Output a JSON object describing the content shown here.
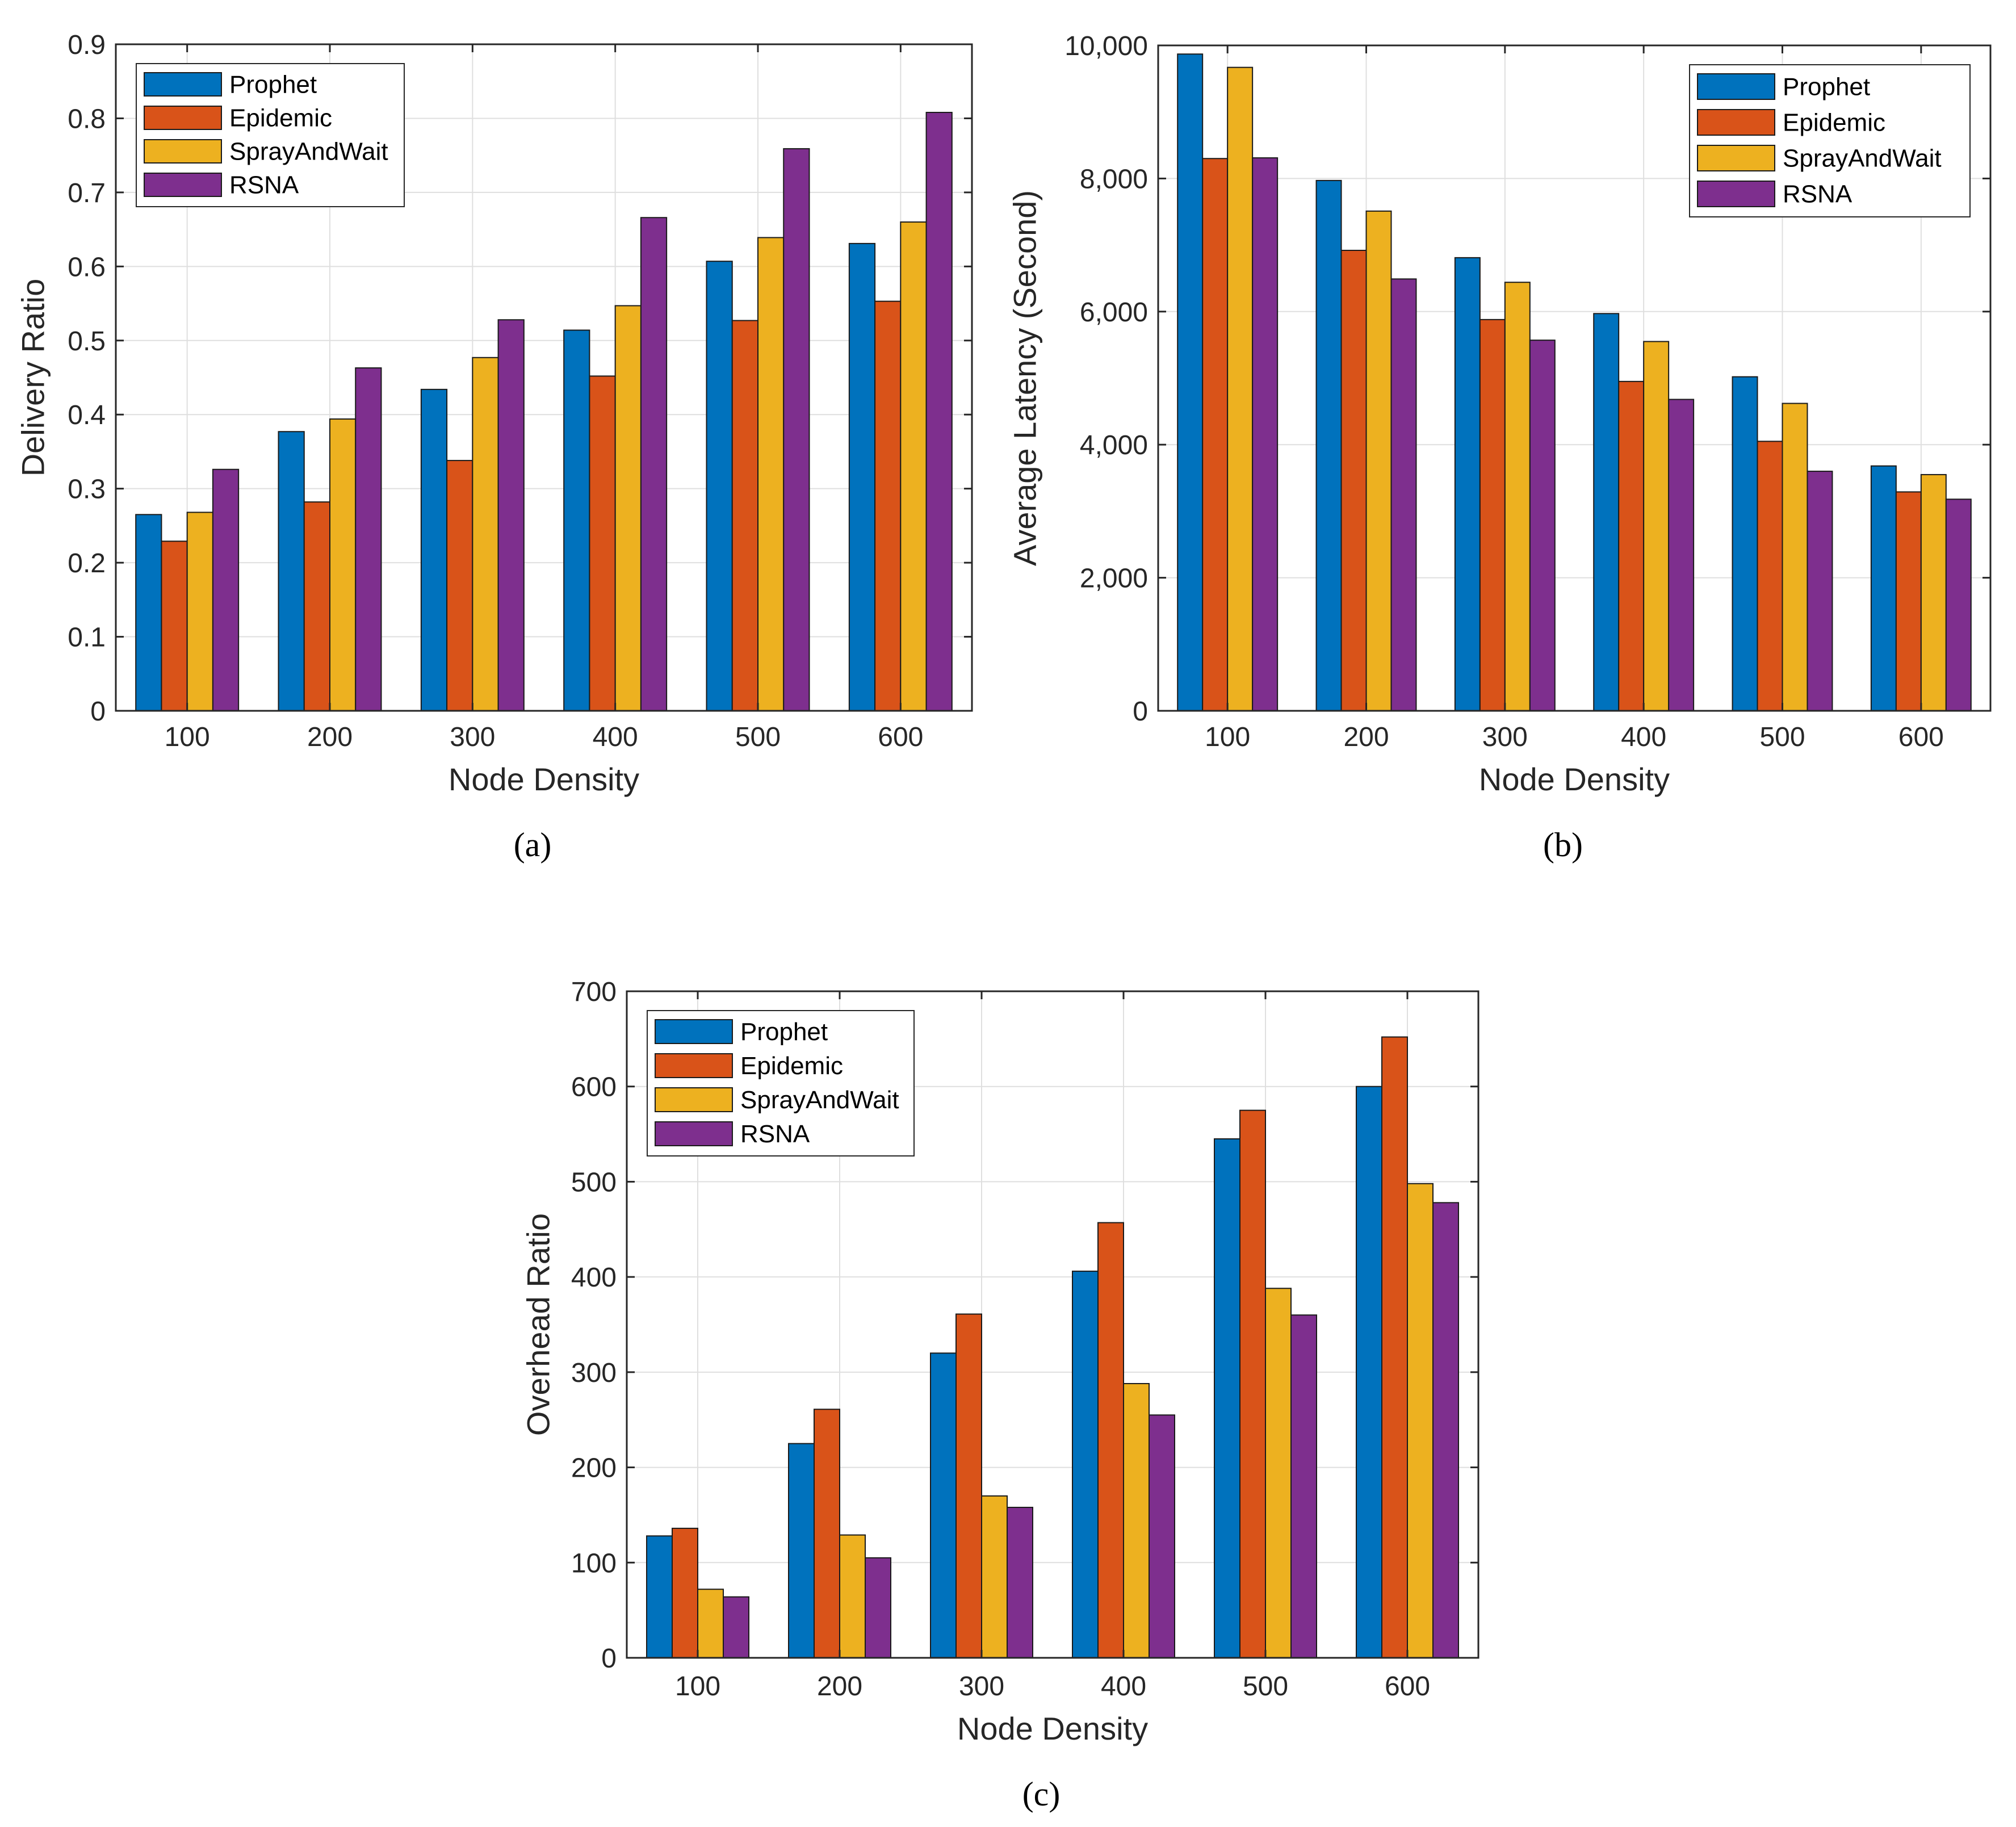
{
  "colors": {
    "Prophet": "#0072BD",
    "Epidemic": "#D95319",
    "SprayAndWait": "#EDB120",
    "RSNA": "#7E2F8E"
  },
  "chart_data": [
    {
      "id": "a",
      "type": "bar",
      "caption": "(a)",
      "xlabel": "Node Density",
      "ylabel": "Delivery Ratio",
      "categories": [
        "100",
        "200",
        "300",
        "400",
        "500",
        "600"
      ],
      "ylim": [
        0,
        0.9
      ],
      "yticks": [
        0,
        0.1,
        0.2,
        0.3,
        0.4,
        0.5,
        0.6,
        0.7,
        0.8,
        0.9
      ],
      "ytick_labels": [
        "0",
        "0.1",
        "0.2",
        "0.3",
        "0.4",
        "0.5",
        "0.6",
        "0.7",
        "0.8",
        "0.9"
      ],
      "legend_position": "top-left",
      "grid": true,
      "series": [
        {
          "name": "Prophet",
          "values": [
            0.265,
            0.377,
            0.434,
            0.514,
            0.607,
            0.631
          ]
        },
        {
          "name": "Epidemic",
          "values": [
            0.229,
            0.282,
            0.338,
            0.452,
            0.527,
            0.553
          ]
        },
        {
          "name": "SprayAndWait",
          "values": [
            0.268,
            0.394,
            0.477,
            0.547,
            0.639,
            0.66
          ]
        },
        {
          "name": "RSNA",
          "values": [
            0.326,
            0.463,
            0.528,
            0.666,
            0.759,
            0.808
          ]
        }
      ]
    },
    {
      "id": "b",
      "type": "bar",
      "caption": "(b)",
      "xlabel": "Node Density",
      "ylabel": "Average Latency (Second)",
      "categories": [
        "100",
        "200",
        "300",
        "400",
        "500",
        "600"
      ],
      "ylim": [
        0,
        10000
      ],
      "yticks": [
        0,
        2000,
        4000,
        6000,
        8000,
        10000
      ],
      "ytick_labels": [
        "0",
        "2,000",
        "4,000",
        "6,000",
        "8,000",
        "10,000"
      ],
      "legend_position": "top-right",
      "grid": true,
      "series": [
        {
          "name": "Prophet",
          "values": [
            9870,
            7970,
            6810,
            5970,
            5020,
            3680
          ]
        },
        {
          "name": "Epidemic",
          "values": [
            8300,
            6920,
            5880,
            4950,
            4050,
            3290
          ]
        },
        {
          "name": "SprayAndWait",
          "values": [
            9670,
            7510,
            6440,
            5550,
            4620,
            3550
          ]
        },
        {
          "name": "RSNA",
          "values": [
            8310,
            6490,
            5570,
            4680,
            3600,
            3180
          ]
        }
      ]
    },
    {
      "id": "c",
      "type": "bar",
      "caption": "(c)",
      "xlabel": "Node Density",
      "ylabel": "Overhead Ratio",
      "categories": [
        "100",
        "200",
        "300",
        "400",
        "500",
        "600"
      ],
      "ylim": [
        0,
        700
      ],
      "yticks": [
        0,
        100,
        200,
        300,
        400,
        500,
        600,
        700
      ],
      "ytick_labels": [
        "0",
        "100",
        "200",
        "300",
        "400",
        "500",
        "600",
        "700"
      ],
      "legend_position": "top-left",
      "grid": true,
      "series": [
        {
          "name": "Prophet",
          "values": [
            128,
            225,
            320,
            406,
            545,
            600
          ]
        },
        {
          "name": "Epidemic",
          "values": [
            136,
            261,
            361,
            457,
            575,
            652
          ]
        },
        {
          "name": "SprayAndWait",
          "values": [
            72,
            129,
            170,
            288,
            388,
            498
          ]
        },
        {
          "name": "RSNA",
          "values": [
            64,
            105,
            158,
            255,
            360,
            478
          ]
        }
      ]
    }
  ]
}
